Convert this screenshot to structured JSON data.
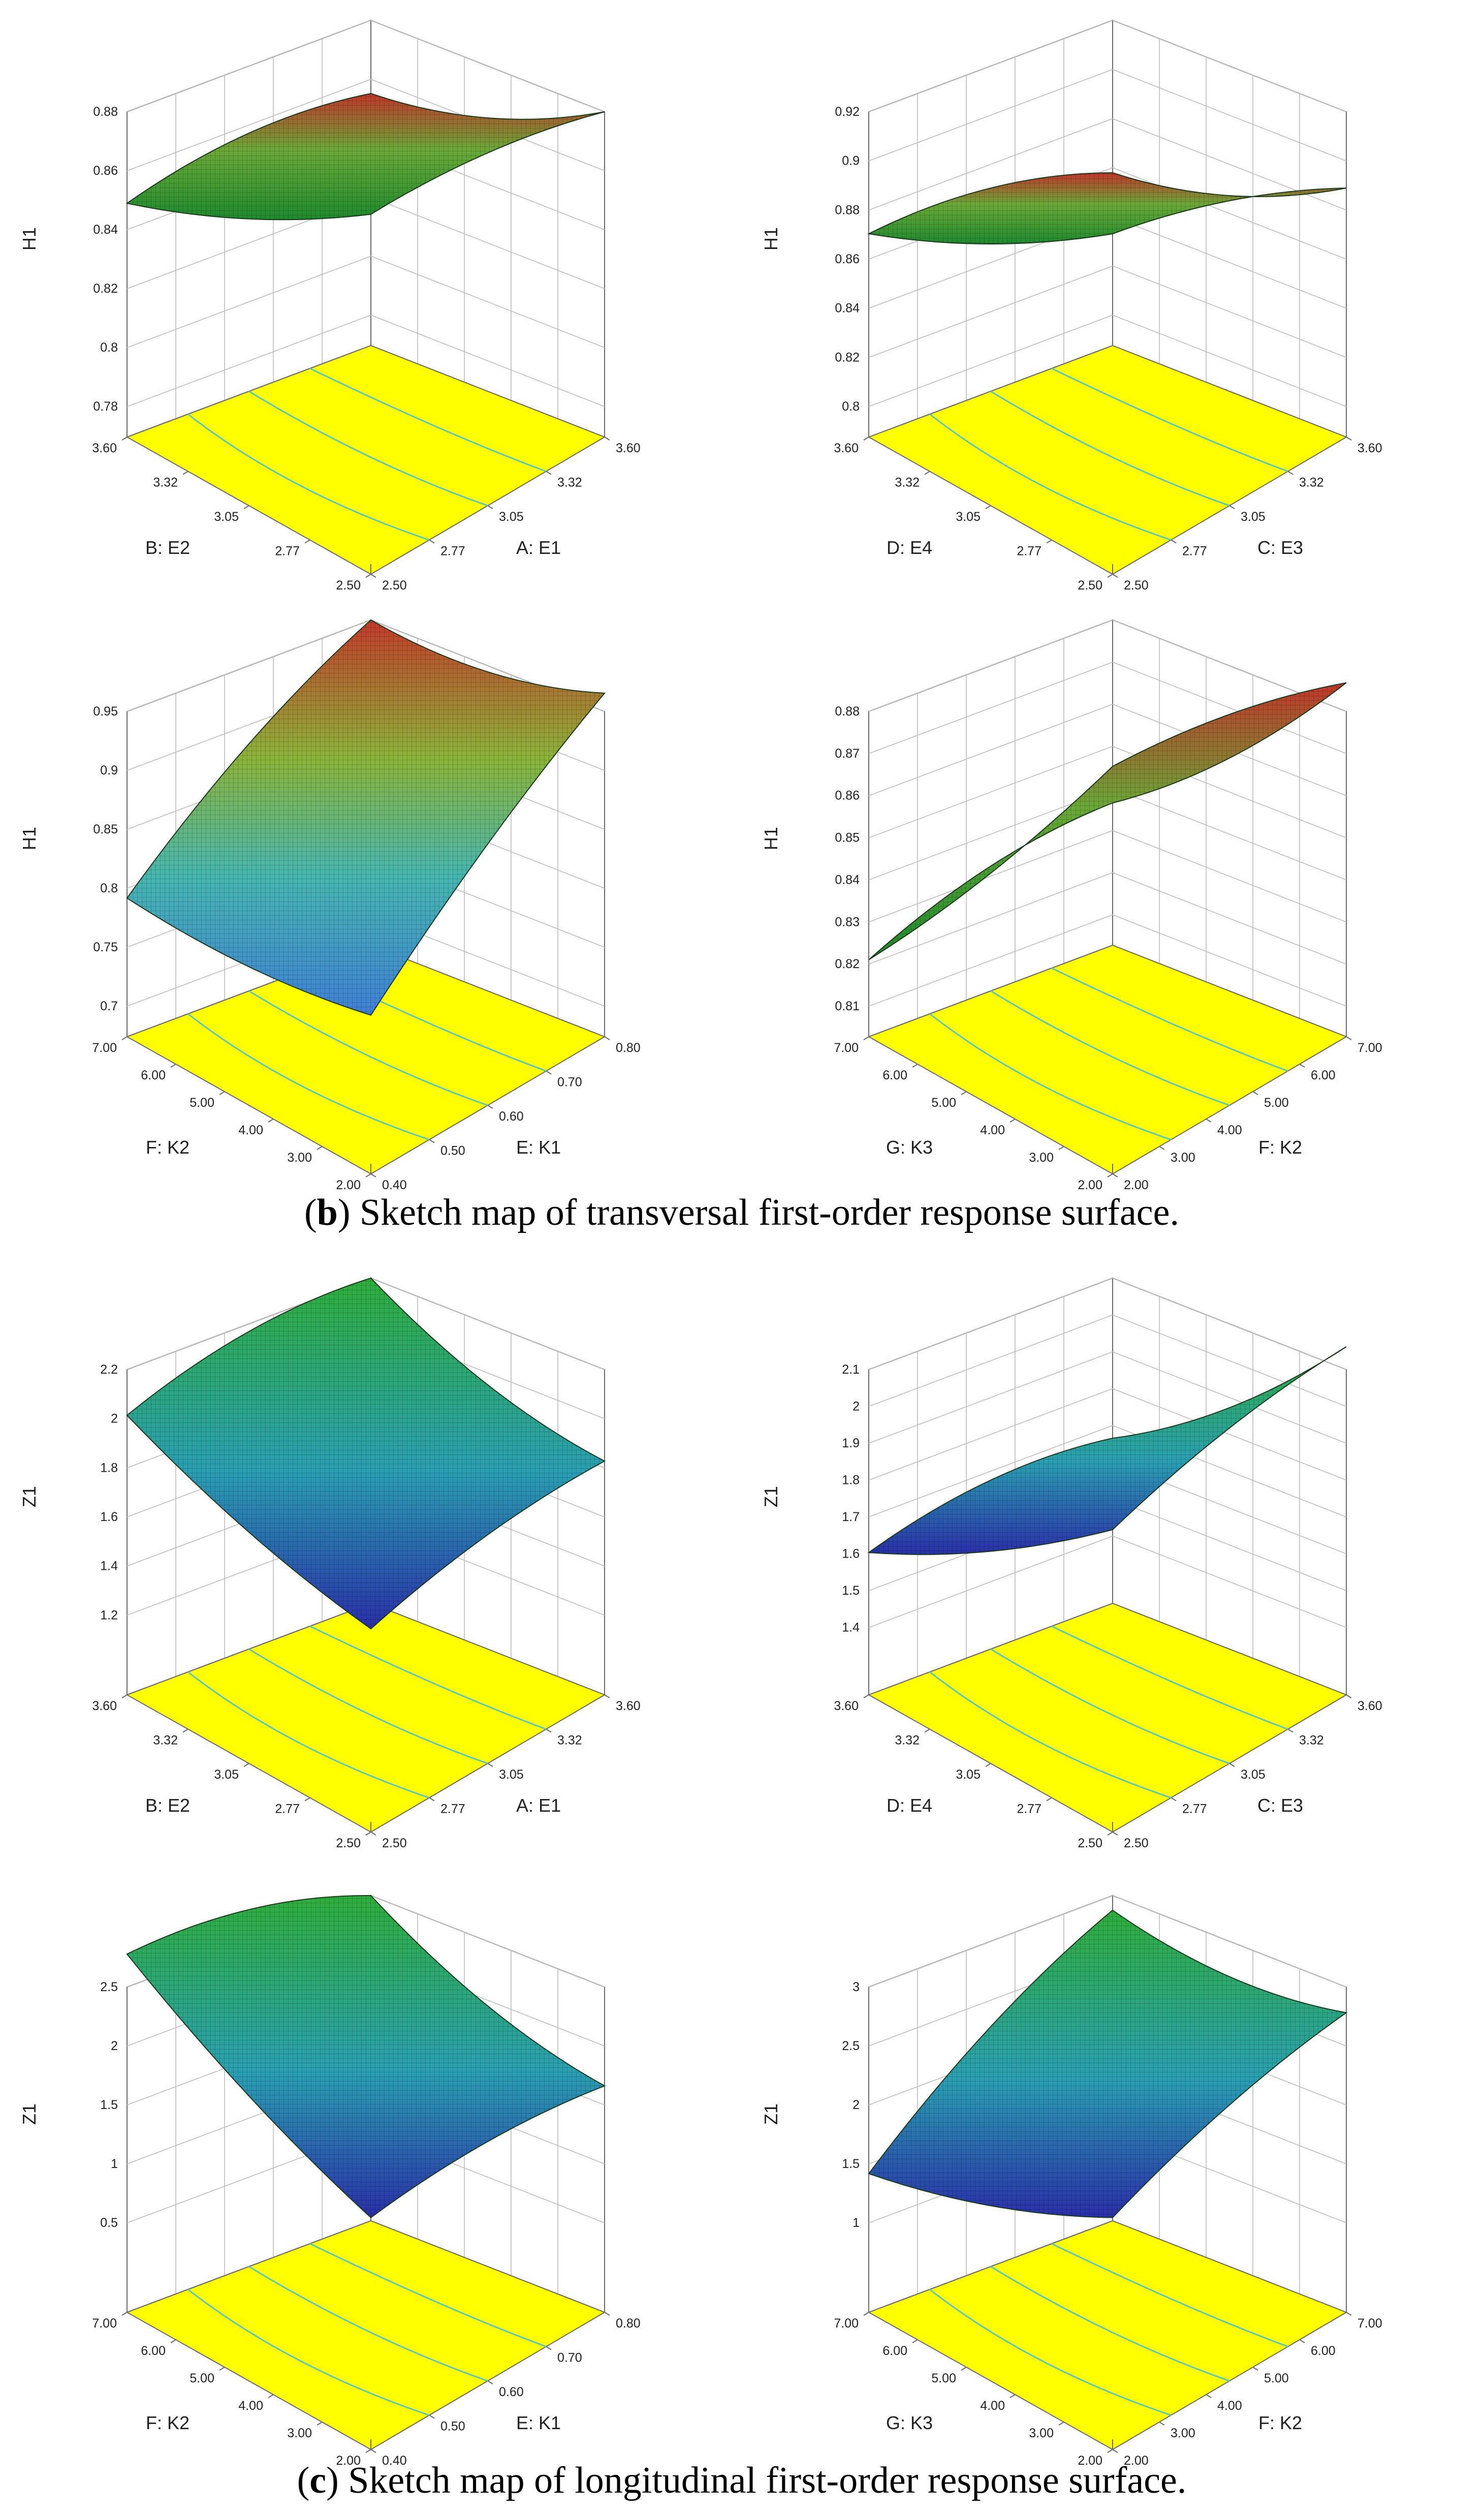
{
  "captions": {
    "b": {
      "letter": "b",
      "text": "Sketch map of transversal first-order response surface."
    },
    "c": {
      "letter": "c",
      "text": "Sketch map of longitudinal first-order response surface."
    }
  },
  "colors": {
    "floor": "#ffff00",
    "contour": "#5cc7b8",
    "box": "#6a6a6a",
    "grid": "#bdbdbd",
    "mesh": "#000000"
  },
  "chart_data": [
    {
      "type": "surface",
      "xlabel": "A: E1",
      "ylabel": "B: E2",
      "zlabel": "H1",
      "xticks": [
        "2.50",
        "2.77",
        "3.05",
        "3.32",
        "3.60"
      ],
      "yticks": [
        "2.50",
        "2.77",
        "3.05",
        "3.32",
        "3.60"
      ],
      "zticks": [
        "0.78",
        "0.8",
        "0.82",
        "0.84",
        "0.86",
        "0.88"
      ],
      "zlim": [
        0.78,
        0.88
      ],
      "corners": [
        0.827,
        0.855,
        0.86,
        0.83
      ],
      "colormap": "green-red"
    },
    {
      "type": "surface",
      "xlabel": "C: E3",
      "ylabel": "D: E4",
      "zlabel": "H1",
      "xticks": [
        "2.50",
        "2.77",
        "3.05",
        "3.32",
        "3.60"
      ],
      "yticks": [
        "2.50",
        "2.77",
        "3.05",
        "3.32",
        "3.60"
      ],
      "zticks": [
        "0.8",
        "0.82",
        "0.84",
        "0.86",
        "0.88",
        "0.9",
        "0.92"
      ],
      "zlim": [
        0.8,
        0.92
      ],
      "corners": [
        0.85,
        0.865,
        0.87,
        0.85
      ],
      "colormap": "green-red"
    },
    {
      "type": "surface",
      "xlabel": "E: K1",
      "ylabel": "F: K2",
      "zlabel": "H1",
      "xticks": [
        "0.40",
        "0.50",
        "0.60",
        "0.70",
        "0.80"
      ],
      "yticks": [
        "2.00",
        "3.00",
        "4.00",
        "5.00",
        "6.00",
        "7.00"
      ],
      "zticks": [
        "0.7",
        "0.75",
        "0.8",
        "0.85",
        "0.9",
        "0.95"
      ],
      "zlim": [
        0.7,
        0.95
      ],
      "corners": [
        0.68,
        0.9,
        0.95,
        0.76
      ],
      "colormap": "blue-green-red"
    },
    {
      "type": "surface",
      "xlabel": "F: K2",
      "ylabel": "G: K3",
      "zlabel": "H1",
      "xticks": [
        "2.00",
        "3.00",
        "4.00",
        "5.00",
        "6.00",
        "7.00"
      ],
      "yticks": [
        "2.00",
        "3.00",
        "4.00",
        "5.00",
        "6.00",
        "7.00"
      ],
      "zticks": [
        "0.81",
        "0.82",
        "0.83",
        "0.84",
        "0.85",
        "0.86",
        "0.87",
        "0.88"
      ],
      "zlim": [
        0.81,
        0.88
      ],
      "corners": [
        0.852,
        0.868,
        0.845,
        0.815
      ],
      "colormap": "green-red"
    },
    {
      "type": "surface",
      "xlabel": "A: E1",
      "ylabel": "B: E2",
      "zlabel": "Z1",
      "xticks": [
        "2.50",
        "2.77",
        "3.05",
        "3.32",
        "3.60"
      ],
      "yticks": [
        "2.50",
        "2.77",
        "3.05",
        "3.32",
        "3.60"
      ],
      "zticks": [
        "1.2",
        "1.4",
        "1.6",
        "1.8",
        "2",
        "2.2"
      ],
      "zlim": [
        1.0,
        2.2
      ],
      "corners": [
        1.05,
        1.6,
        2.2,
        1.75
      ],
      "colormap": "blue-green"
    },
    {
      "type": "surface",
      "xlabel": "C: E3",
      "ylabel": "D: E4",
      "zlabel": "Z1",
      "xticks": [
        "2.50",
        "2.77",
        "3.05",
        "3.32",
        "3.60"
      ],
      "yticks": [
        "2.50",
        "2.77",
        "3.05",
        "3.32",
        "3.60"
      ],
      "zticks": [
        "1.4",
        "1.5",
        "1.6",
        "1.7",
        "1.8",
        "1.9",
        "2",
        "2.1"
      ],
      "zlim": [
        1.3,
        2.1
      ],
      "corners": [
        1.55,
        1.95,
        1.75,
        1.5
      ],
      "colormap": "blue-green"
    },
    {
      "type": "surface",
      "xlabel": "E: K1",
      "ylabel": "F: K2",
      "zlabel": "Z1",
      "xticks": [
        "0.40",
        "0.50",
        "0.60",
        "0.70",
        "0.80"
      ],
      "yticks": [
        "2.00",
        "3.00",
        "4.00",
        "5.00",
        "6.00",
        "7.00"
      ],
      "zticks": [
        "0.5",
        "1",
        "1.5",
        "2",
        "2.5"
      ],
      "zlim": [
        0,
        2.5
      ],
      "corners": [
        0.3,
        1.2,
        2.5,
        2.1
      ],
      "colormap": "blue-green"
    },
    {
      "type": "surface",
      "xlabel": "F: K2",
      "ylabel": "G: K3",
      "zlabel": "Z1",
      "xticks": [
        "2.00",
        "3.00",
        "4.00",
        "5.00",
        "6.00",
        "7.00"
      ],
      "yticks": [
        "2.00",
        "3.00",
        "4.00",
        "5.00",
        "6.00",
        "7.00"
      ],
      "zticks": [
        "1",
        "1.5",
        "2",
        "2.5",
        "3"
      ],
      "zlim": [
        0.5,
        3
      ],
      "corners": [
        0.8,
        2.2,
        2.9,
        1.1
      ],
      "colormap": "blue-green"
    }
  ]
}
